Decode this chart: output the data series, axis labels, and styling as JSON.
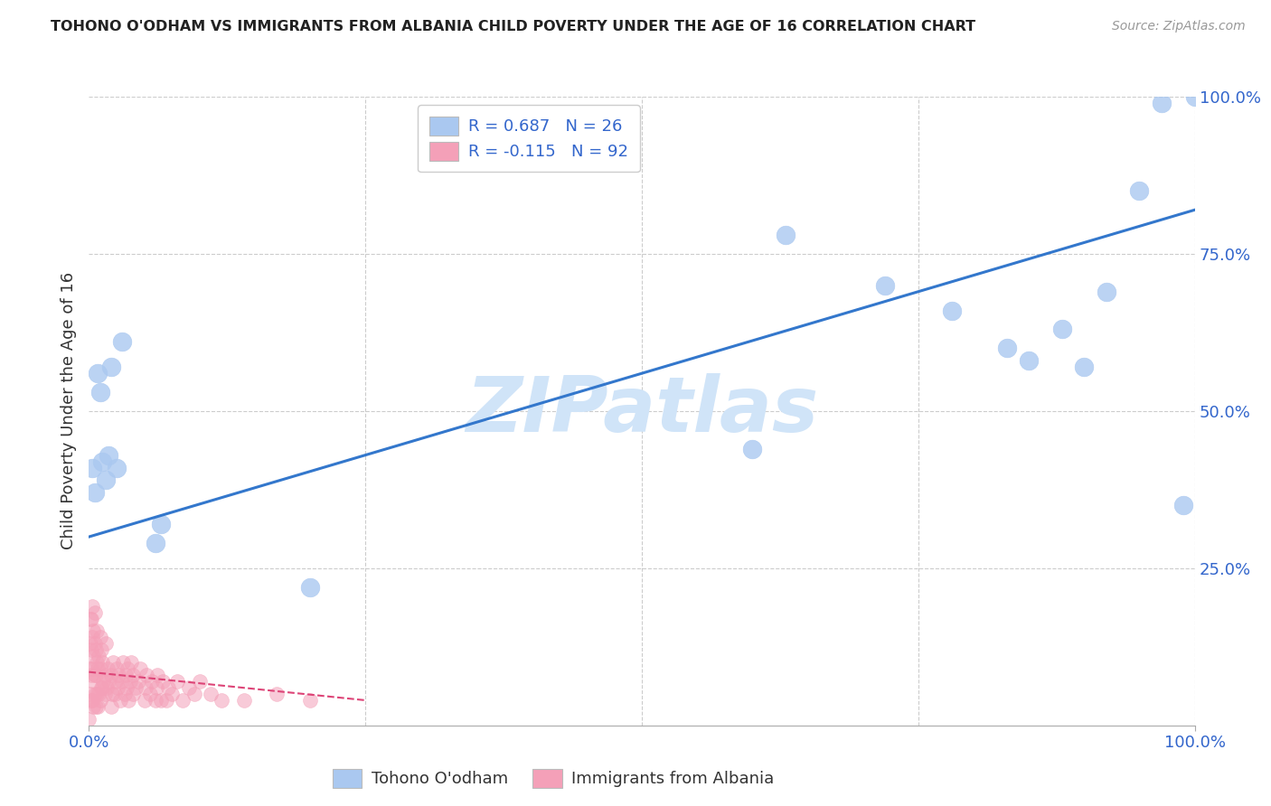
{
  "title": "TOHONO O'ODHAM VS IMMIGRANTS FROM ALBANIA CHILD POVERTY UNDER THE AGE OF 16 CORRELATION CHART",
  "source": "Source: ZipAtlas.com",
  "ylabel": "Child Poverty Under the Age of 16",
  "xlim": [
    0,
    1
  ],
  "ylim": [
    0,
    1
  ],
  "ytick_labels": [
    "25.0%",
    "50.0%",
    "75.0%",
    "100.0%"
  ],
  "ytick_positions": [
    0.25,
    0.5,
    0.75,
    1.0
  ],
  "legend1_R": "R = 0.687",
  "legend1_N": "N = 26",
  "legend2_R": "R = -0.115",
  "legend2_N": "N = 92",
  "legend_label1": "Tohono O'odham",
  "legend_label2": "Immigrants from Albania",
  "blue_color": "#aac8f0",
  "pink_color": "#f4a0b8",
  "blue_line_color": "#3377cc",
  "pink_line_color": "#dd4477",
  "watermark": "ZIPatlas",
  "watermark_color": "#d0e4f8",
  "blue_scatter_x": [
    0.003,
    0.005,
    0.008,
    0.01,
    0.012,
    0.015,
    0.018,
    0.02,
    0.025,
    0.03,
    0.06,
    0.065,
    0.2,
    0.6,
    0.63,
    0.72,
    0.78,
    0.83,
    0.85,
    0.88,
    0.9,
    0.92,
    0.95,
    0.97,
    0.99,
    1.0
  ],
  "blue_scatter_y": [
    0.41,
    0.37,
    0.56,
    0.53,
    0.42,
    0.39,
    0.43,
    0.57,
    0.41,
    0.61,
    0.29,
    0.32,
    0.22,
    0.44,
    0.78,
    0.7,
    0.66,
    0.6,
    0.58,
    0.63,
    0.57,
    0.69,
    0.85,
    0.99,
    0.35,
    1.0
  ],
  "pink_scatter_x": [
    0.0,
    0.001,
    0.001,
    0.001,
    0.001,
    0.002,
    0.002,
    0.002,
    0.002,
    0.003,
    0.003,
    0.003,
    0.003,
    0.004,
    0.004,
    0.004,
    0.004,
    0.005,
    0.005,
    0.005,
    0.005,
    0.006,
    0.006,
    0.006,
    0.007,
    0.007,
    0.007,
    0.008,
    0.008,
    0.009,
    0.009,
    0.01,
    0.01,
    0.01,
    0.011,
    0.011,
    0.012,
    0.012,
    0.013,
    0.014,
    0.015,
    0.015,
    0.016,
    0.017,
    0.018,
    0.02,
    0.02,
    0.021,
    0.022,
    0.023,
    0.024,
    0.025,
    0.026,
    0.027,
    0.028,
    0.03,
    0.031,
    0.032,
    0.033,
    0.034,
    0.035,
    0.036,
    0.037,
    0.038,
    0.04,
    0.04,
    0.042,
    0.045,
    0.046,
    0.05,
    0.051,
    0.052,
    0.055,
    0.057,
    0.06,
    0.061,
    0.062,
    0.065,
    0.067,
    0.07,
    0.072,
    0.075,
    0.08,
    0.085,
    0.09,
    0.095,
    0.1,
    0.11,
    0.12,
    0.14,
    0.17,
    0.2
  ],
  "pink_scatter_y": [
    0.01,
    0.05,
    0.09,
    0.13,
    0.17,
    0.04,
    0.08,
    0.12,
    0.17,
    0.04,
    0.09,
    0.14,
    0.19,
    0.03,
    0.07,
    0.11,
    0.15,
    0.05,
    0.08,
    0.13,
    0.18,
    0.03,
    0.08,
    0.12,
    0.05,
    0.1,
    0.15,
    0.03,
    0.09,
    0.05,
    0.11,
    0.04,
    0.09,
    0.14,
    0.06,
    0.12,
    0.06,
    0.1,
    0.07,
    0.05,
    0.08,
    0.13,
    0.06,
    0.09,
    0.07,
    0.03,
    0.08,
    0.05,
    0.1,
    0.05,
    0.07,
    0.09,
    0.06,
    0.08,
    0.04,
    0.07,
    0.1,
    0.05,
    0.08,
    0.06,
    0.09,
    0.04,
    0.07,
    0.1,
    0.05,
    0.08,
    0.06,
    0.07,
    0.09,
    0.04,
    0.06,
    0.08,
    0.05,
    0.07,
    0.04,
    0.06,
    0.08,
    0.04,
    0.07,
    0.04,
    0.06,
    0.05,
    0.07,
    0.04,
    0.06,
    0.05,
    0.07,
    0.05,
    0.04,
    0.04,
    0.05,
    0.04
  ],
  "blue_line_x": [
    0.0,
    1.0
  ],
  "blue_line_y": [
    0.3,
    0.82
  ],
  "pink_line_x": [
    0.0,
    0.25
  ],
  "pink_line_y": [
    0.085,
    0.04
  ],
  "background_color": "#ffffff",
  "grid_color": "#cccccc"
}
